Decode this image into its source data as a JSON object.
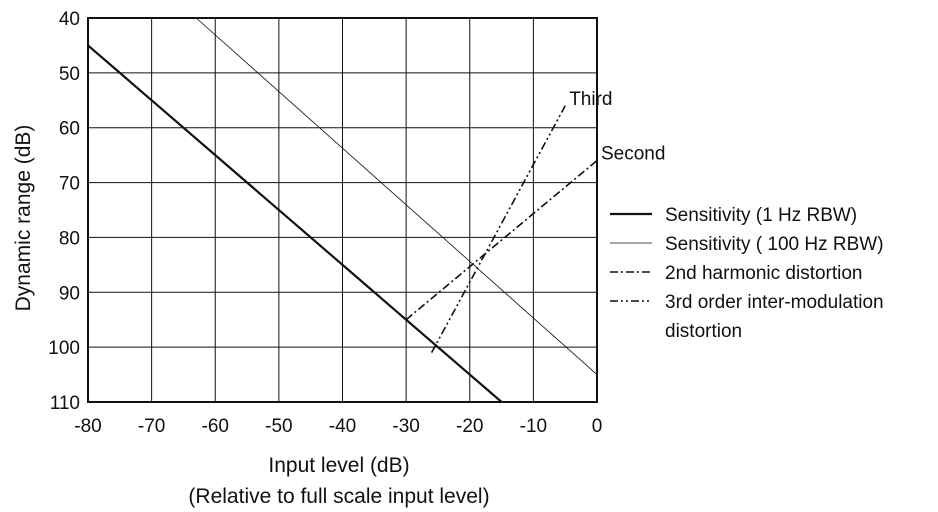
{
  "chart_data": {
    "type": "line",
    "xlabel": "Input level (dB)",
    "xlabel_sub": "(Relative to full scale input level)",
    "ylabel": "Dynamic range (dB)",
    "xlim": [
      -80,
      0
    ],
    "ylim": [
      40,
      110
    ],
    "y_inverted": true,
    "grid": true,
    "x_ticks": [
      -80,
      -70,
      -60,
      -50,
      -40,
      -30,
      -20,
      -10,
      0
    ],
    "x_tick_labels": [
      "-80",
      "-70",
      "-60",
      "-50",
      "-40",
      "-30",
      "-20",
      "-10",
      "0"
    ],
    "y_ticks": [
      40,
      50,
      60,
      70,
      80,
      90,
      100,
      110
    ],
    "y_tick_labels": [
      "40",
      "50",
      "60",
      "70",
      "80",
      "90",
      "100",
      "110"
    ],
    "legend_position": "right",
    "legend": [
      {
        "label": "Sensitivity (1 Hz RBW)",
        "style": "solid-thick"
      },
      {
        "label": "Sensitivity ( 100 Hz RBW)",
        "style": "solid-thin"
      },
      {
        "label": "2nd harmonic distortion",
        "style": "dash-dot"
      },
      {
        "label": "3rd order inter-modulation",
        "label2": "distortion",
        "style": "dash-dot-dot"
      }
    ],
    "series": [
      {
        "name": "Sensitivity (1 Hz RBW)",
        "style": "solid-thick",
        "x": [
          -80,
          -15
        ],
        "y": [
          45,
          110
        ]
      },
      {
        "name": "Sensitivity ( 100 Hz RBW)",
        "style": "solid-thin",
        "x": [
          -63,
          0
        ],
        "y": [
          40,
          105
        ]
      },
      {
        "name": "2nd harmonic distortion",
        "style": "dash-dot",
        "x": [
          -30,
          0
        ],
        "y": [
          95,
          66
        ]
      },
      {
        "name": "3rd order inter-modulation distortion",
        "style": "dash-dot-dot",
        "x": [
          -26,
          -5
        ],
        "y": [
          101,
          56
        ]
      }
    ],
    "annotations": [
      {
        "text": "Third",
        "x": -5,
        "y": 56
      },
      {
        "text": "Second",
        "x": 0,
        "y": 66
      }
    ]
  }
}
